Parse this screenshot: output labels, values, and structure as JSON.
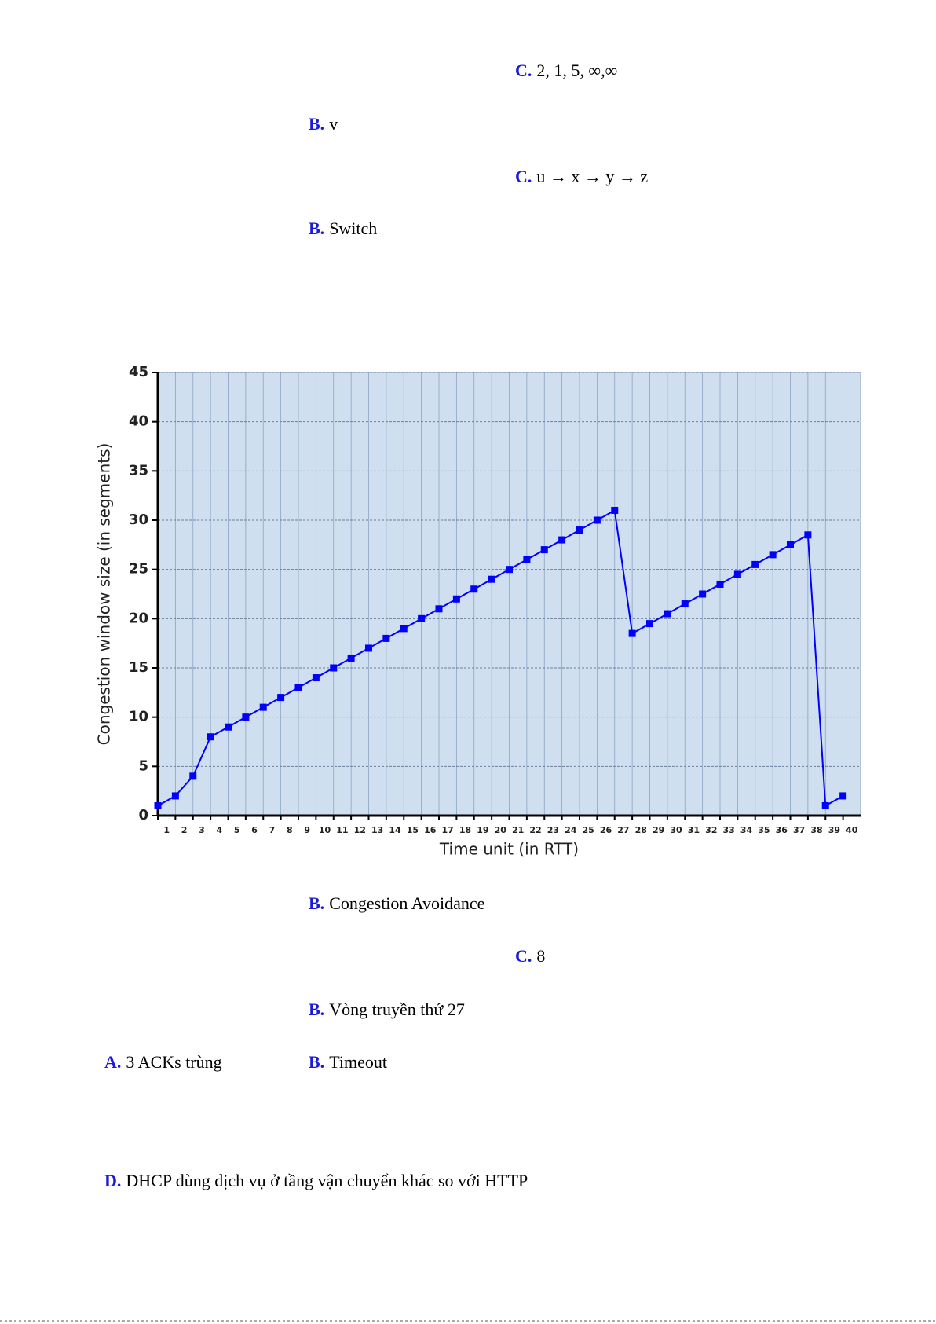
{
  "items": [
    {
      "letter": "C.",
      "text": "2, 1, 5, ∞,∞"
    },
    {
      "letter": "B.",
      "text": "v"
    },
    {
      "letter": "C.",
      "text": "u → x → y → z"
    },
    {
      "letter": "B.",
      "text": "Switch"
    },
    {
      "letter": "B.",
      "text": "Congestion Avoidance"
    },
    {
      "letter": "C.",
      "text": "8"
    },
    {
      "letter": "B.",
      "text": "Vòng truyền thứ 27"
    },
    {
      "letter": "A.",
      "text": "3 ACKs trùng"
    },
    {
      "letter": "B.",
      "text": "Timeout"
    },
    {
      "letter": "D.",
      "text": "DHCP dùng dịch vụ ở tầng vận chuyển khác so với HTTP"
    }
  ],
  "chart_data": {
    "type": "line",
    "x_label": "Time unit (in RTT)",
    "y_label": "Congestion window size (in segments)",
    "x": [
      1,
      2,
      3,
      4,
      5,
      6,
      7,
      8,
      9,
      10,
      11,
      12,
      13,
      14,
      15,
      16,
      17,
      18,
      19,
      20,
      21,
      22,
      23,
      24,
      25,
      26,
      27,
      28,
      29,
      30,
      31,
      32,
      33,
      34,
      35,
      36,
      37,
      38,
      39,
      40
    ],
    "series": [
      {
        "color": "#0000ff",
        "values": [
          1,
          2,
          4,
          8,
          9,
          10,
          11,
          12,
          13,
          14,
          15,
          16,
          17,
          18,
          19,
          20,
          21,
          22,
          23,
          24,
          25,
          26,
          27,
          28,
          29,
          30,
          31,
          18.5,
          19.5,
          20.5,
          21.5,
          22.5,
          23.5,
          24.5,
          25.5,
          26.5,
          27.5,
          28.5,
          1,
          2
        ]
      }
    ],
    "xlim": [
      1,
      41
    ],
    "xticks": [
      1,
      2,
      3,
      4,
      5,
      6,
      7,
      8,
      9,
      10,
      11,
      12,
      13,
      14,
      15,
      16,
      17,
      18,
      19,
      20,
      21,
      22,
      23,
      24,
      25,
      26,
      27,
      28,
      29,
      30,
      31,
      32,
      33,
      34,
      35,
      36,
      37,
      38,
      39,
      40
    ],
    "ylim": [
      0,
      45
    ],
    "yticks": [
      0,
      5,
      10,
      15,
      20,
      25,
      30,
      35,
      40,
      45
    ],
    "grid": true,
    "background": "#cfdff0"
  }
}
